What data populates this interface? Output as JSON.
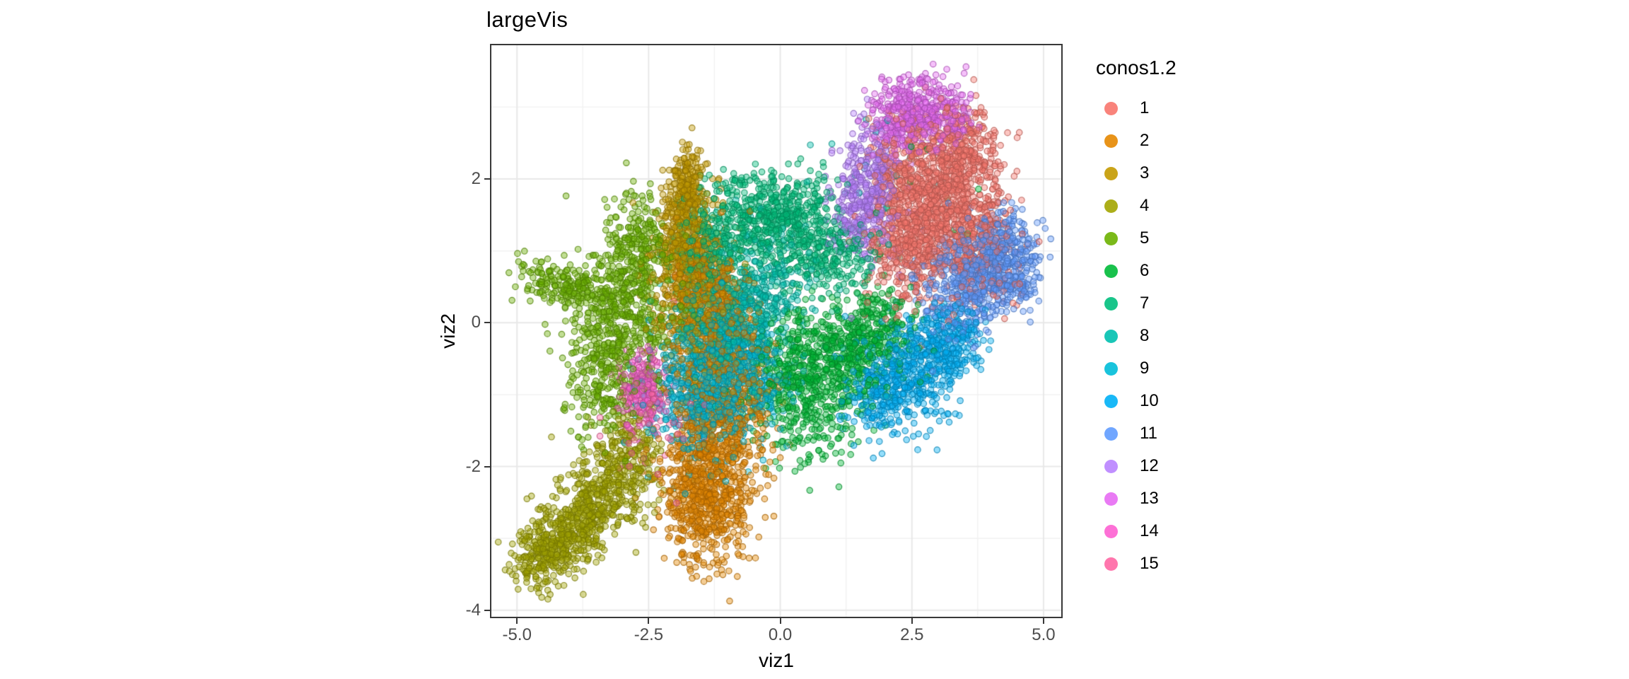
{
  "chart": {
    "title": "largeVis",
    "x_label": "viz1",
    "y_label": "viz2",
    "x_ticks": [
      {
        "label": "-5.0",
        "value": -5.0
      },
      {
        "label": "-2.5",
        "value": -2.5
      },
      {
        "label": "0.0",
        "value": 0.0
      },
      {
        "label": "2.5",
        "value": 2.5
      },
      {
        "label": "5.0",
        "value": 5.0
      }
    ],
    "y_ticks": [
      {
        "label": "2",
        "value": 2
      },
      {
        "label": "0",
        "value": 0
      },
      {
        "label": "-2",
        "value": -2
      },
      {
        "label": "-4",
        "value": -4
      }
    ]
  },
  "legend": {
    "title": "conos1.2",
    "items": [
      {
        "label": "1",
        "color": "#F8766D"
      },
      {
        "label": "2",
        "color": "#E58700"
      },
      {
        "label": "3",
        "color": "#C49A00"
      },
      {
        "label": "4",
        "color": "#A3A500"
      },
      {
        "label": "5",
        "color": "#6BB100"
      },
      {
        "label": "6",
        "color": "#00BA38"
      },
      {
        "label": "7",
        "color": "#00BF7D"
      },
      {
        "label": "8",
        "color": "#00C0AF"
      },
      {
        "label": "9",
        "color": "#00BCD8"
      },
      {
        "label": "10",
        "color": "#00B0F6"
      },
      {
        "label": "11",
        "color": "#619CFF"
      },
      {
        "label": "12",
        "color": "#B983FF"
      },
      {
        "label": "13",
        "color": "#E76BF3"
      },
      {
        "label": "14",
        "color": "#FD61D1"
      },
      {
        "label": "15",
        "color": "#FF67A4"
      }
    ]
  },
  "chart_data": {
    "type": "scatter",
    "title": "largeVis",
    "xlabel": "viz1",
    "ylabel": "viz2",
    "xlim": [
      -5.5,
      5.35
    ],
    "ylim": [
      -4.1,
      3.87
    ],
    "x_major_ticks": [
      -5.0,
      -2.5,
      0.0,
      2.5,
      5.0
    ],
    "x_minor_ticks": [
      -3.75,
      -1.25,
      1.25,
      3.75
    ],
    "y_major_ticks": [
      2,
      0,
      -2,
      -4
    ],
    "y_minor_ticks": [
      3,
      1,
      -1,
      -3
    ],
    "grid": true,
    "legend_title": "conos1.2",
    "legend_position": "right",
    "point_radius_px": 4.2,
    "point_fill_alpha": 0.42,
    "point_stroke_alpha": 0.8,
    "major_grid_color": "#e8e8e8",
    "minor_grid_color": "#f1f1f1",
    "seed": 42,
    "series_note": "blobs are gaussian mixture components [cx, cy, sx, sy, rot_deg, n] approximating each cluster's point cloud",
    "series": [
      {
        "name": "1",
        "color": "#F8766D",
        "blobs": [
          [
            3.05,
            1.65,
            0.55,
            0.6,
            0,
            1050
          ],
          [
            2.35,
            1.1,
            0.38,
            0.45,
            0,
            280
          ],
          [
            3.5,
            2.45,
            0.32,
            0.28,
            0,
            190
          ],
          [
            2.15,
            2.1,
            0.25,
            0.3,
            0,
            120
          ],
          [
            3.9,
            0.95,
            0.3,
            0.3,
            0,
            130
          ]
        ]
      },
      {
        "name": "2",
        "color": "#E58700",
        "blobs": [
          [
            -1.45,
            -2.35,
            0.42,
            0.5,
            15,
            760
          ],
          [
            -1.0,
            -1.25,
            0.45,
            0.55,
            0,
            430
          ],
          [
            -1.25,
            -0.1,
            0.42,
            0.62,
            0,
            390
          ],
          [
            -1.55,
            0.7,
            0.3,
            0.35,
            0,
            140
          ]
        ]
      },
      {
        "name": "3",
        "color": "#C49A00",
        "blobs": [
          [
            -1.75,
            1.95,
            0.17,
            0.26,
            0,
            170
          ],
          [
            -1.82,
            1.25,
            0.27,
            0.4,
            0,
            330
          ],
          [
            -1.65,
            0.45,
            0.4,
            0.5,
            0,
            380
          ]
        ]
      },
      {
        "name": "4",
        "color": "#A3A500",
        "blobs": [
          [
            -4.5,
            -3.22,
            0.3,
            0.22,
            25,
            240
          ],
          [
            -3.9,
            -2.85,
            0.4,
            0.3,
            25,
            300
          ],
          [
            -3.3,
            -2.35,
            0.42,
            0.35,
            25,
            280
          ],
          [
            -2.85,
            -1.85,
            0.3,
            0.3,
            25,
            170
          ]
        ]
      },
      {
        "name": "5",
        "color": "#6BB100",
        "blobs": [
          [
            -3.0,
            0.1,
            0.5,
            0.55,
            0,
            520
          ],
          [
            -4.15,
            0.55,
            0.42,
            0.15,
            -8,
            170
          ],
          [
            -2.75,
            1.05,
            0.3,
            0.38,
            0,
            200
          ],
          [
            -3.4,
            -0.85,
            0.35,
            0.4,
            0,
            200
          ]
        ]
      },
      {
        "name": "6",
        "color": "#00BA38",
        "blobs": [
          [
            0.35,
            -0.7,
            0.5,
            0.42,
            15,
            380
          ],
          [
            1.2,
            -0.4,
            0.5,
            0.4,
            15,
            340
          ],
          [
            1.95,
            -0.05,
            0.35,
            0.3,
            15,
            170
          ],
          [
            0.7,
            -1.5,
            0.5,
            0.3,
            10,
            100
          ],
          [
            2.8,
            1.5,
            0.6,
            0.5,
            0,
            12
          ]
        ]
      },
      {
        "name": "7",
        "color": "#00BF7D",
        "blobs": [
          [
            -0.5,
            1.45,
            0.55,
            0.33,
            0,
            380
          ],
          [
            0.4,
            1.25,
            0.5,
            0.38,
            0,
            330
          ],
          [
            -1.3,
            0.95,
            0.35,
            0.35,
            0,
            170
          ],
          [
            1.2,
            0.9,
            0.35,
            0.3,
            0,
            120
          ]
        ]
      },
      {
        "name": "8",
        "color": "#00C0AF",
        "blobs": [
          [
            -0.55,
            0.35,
            0.55,
            0.45,
            0,
            420
          ],
          [
            -1.3,
            -0.2,
            0.45,
            0.4,
            0,
            280
          ],
          [
            1.6,
            2.5,
            0.6,
            0.45,
            0,
            14
          ]
        ]
      },
      {
        "name": "9",
        "color": "#00BCD8",
        "blobs": [
          [
            -1.5,
            -1.0,
            0.5,
            0.45,
            0,
            540
          ],
          [
            -0.85,
            -0.35,
            0.4,
            0.35,
            0,
            250
          ],
          [
            -0.3,
            -0.9,
            0.3,
            0.3,
            0,
            110
          ]
        ]
      },
      {
        "name": "10",
        "color": "#00B0F6",
        "blobs": [
          [
            2.6,
            -0.6,
            0.5,
            0.38,
            20,
            420
          ],
          [
            1.95,
            -0.95,
            0.38,
            0.3,
            20,
            200
          ],
          [
            3.25,
            -0.25,
            0.3,
            0.27,
            20,
            180
          ]
        ]
      },
      {
        "name": "11",
        "color": "#619CFF",
        "blobs": [
          [
            4.15,
            0.95,
            0.4,
            0.3,
            32,
            320
          ],
          [
            3.65,
            0.4,
            0.4,
            0.3,
            32,
            250
          ],
          [
            4.55,
            0.6,
            0.25,
            0.22,
            32,
            100
          ],
          [
            3.2,
            0.65,
            0.45,
            0.3,
            20,
            140
          ]
        ]
      },
      {
        "name": "12",
        "color": "#B983FF",
        "blobs": [
          [
            1.7,
            1.95,
            0.28,
            0.42,
            0,
            300
          ],
          [
            1.45,
            1.45,
            0.25,
            0.3,
            0,
            150
          ]
        ]
      },
      {
        "name": "13",
        "color": "#E76BF3",
        "blobs": [
          [
            2.5,
            3.0,
            0.4,
            0.26,
            0,
            300
          ],
          [
            3.15,
            2.85,
            0.3,
            0.22,
            0,
            130
          ],
          [
            2.2,
            2.65,
            0.2,
            0.2,
            0,
            70
          ]
        ]
      },
      {
        "name": "14",
        "color": "#FD61D1",
        "blobs": [
          [
            -2.6,
            -0.95,
            0.22,
            0.28,
            0,
            200
          ]
        ]
      },
      {
        "name": "15",
        "color": "#FF67A4",
        "blobs": [
          [
            -2.45,
            -1.2,
            0.45,
            0.45,
            0,
            85
          ]
        ]
      }
    ]
  }
}
